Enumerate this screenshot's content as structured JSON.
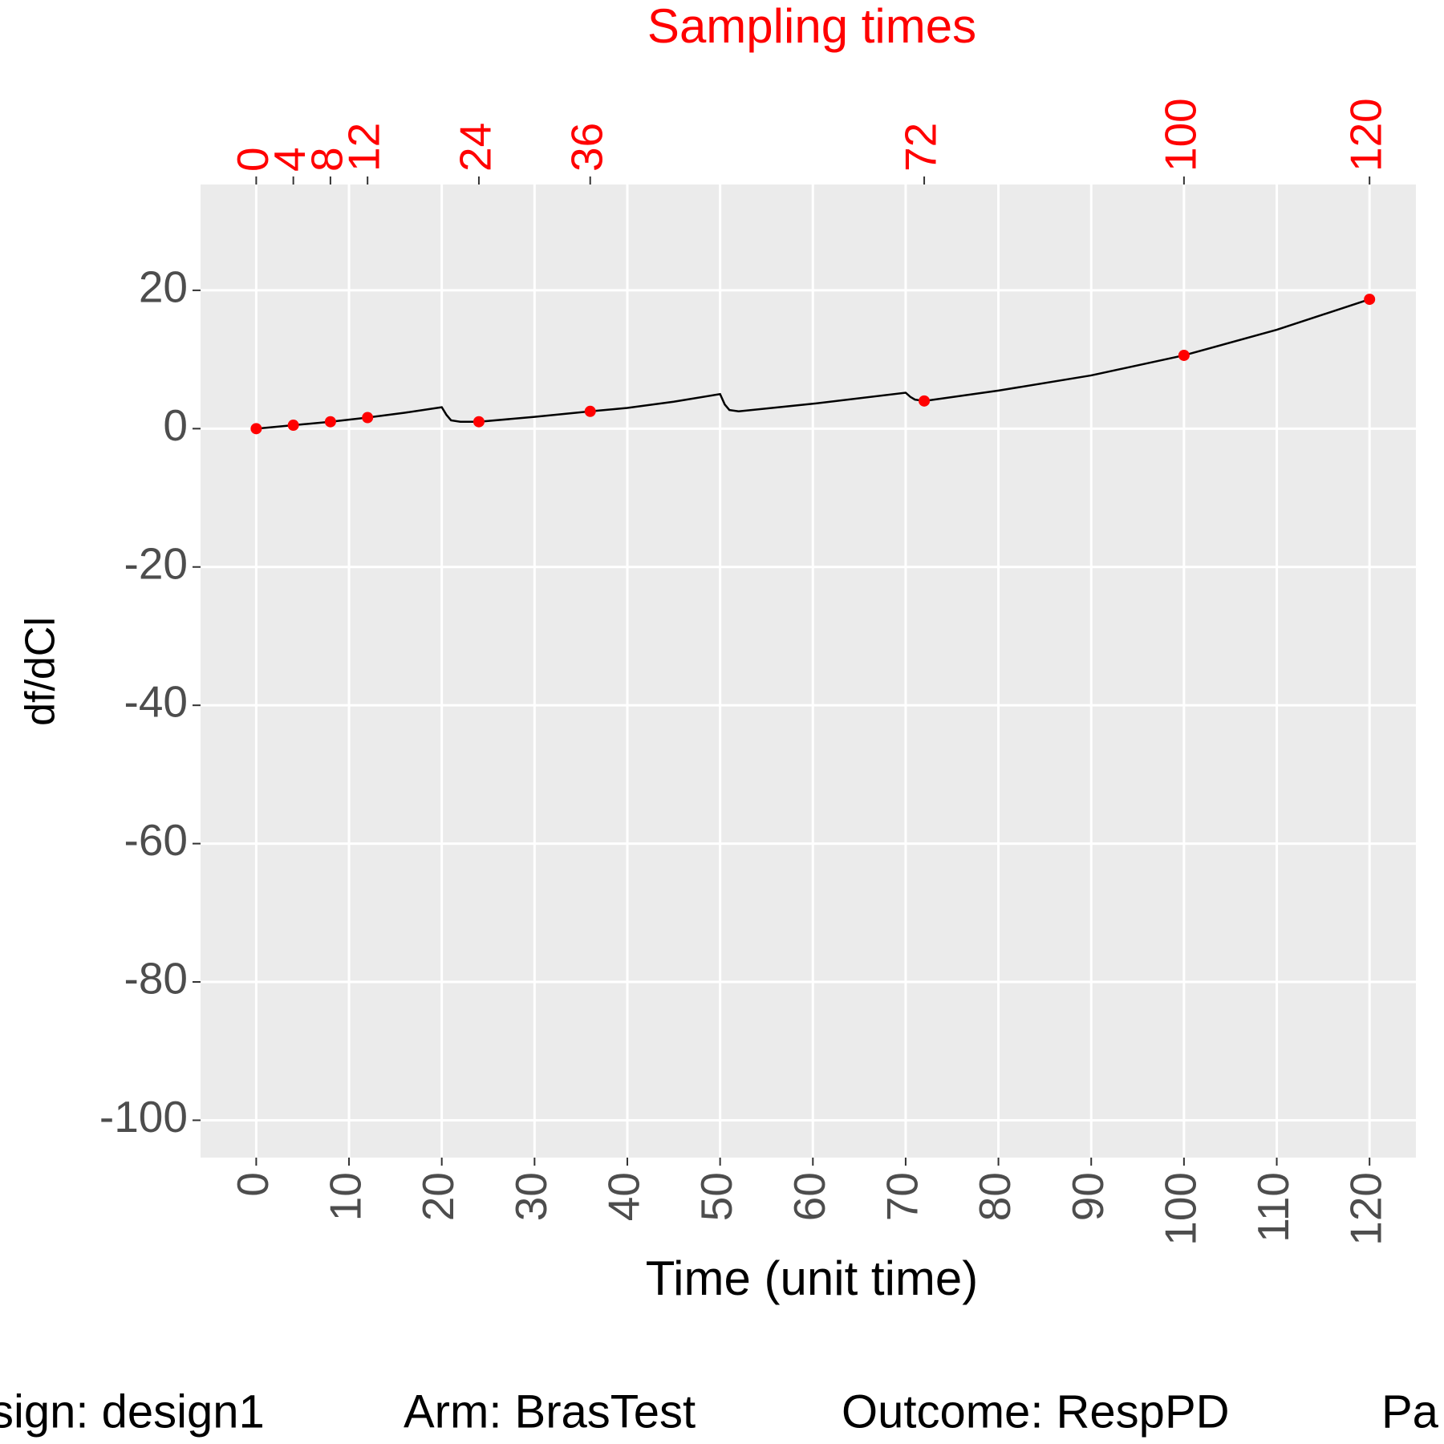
{
  "chart_data": {
    "type": "line",
    "title": "Sampling times",
    "x_label": "Time (unit time)",
    "y_label": "df/dCl",
    "xlim": [
      -6,
      125
    ],
    "ylim": [
      -105.4,
      35.3
    ],
    "xticks": [
      0,
      10,
      20,
      30,
      40,
      50,
      60,
      70,
      80,
      90,
      100,
      110,
      120
    ],
    "yticks": [
      -100,
      -80,
      -60,
      -40,
      -20,
      0,
      20
    ],
    "x2ticks": [
      0,
      4,
      8,
      12,
      24,
      36,
      72,
      100,
      120
    ],
    "grid": true,
    "series": [
      {
        "color": "#000000",
        "x": [
          0,
          4,
          8,
          12,
          16,
          20,
          20.5,
          21,
          22,
          24,
          30,
          36,
          40,
          45,
          50,
          50.5,
          51,
          52,
          60,
          70,
          70.5,
          71,
          72,
          80,
          90,
          100,
          110,
          120
        ],
        "values": [
          0,
          0.5,
          1.0,
          1.6,
          2.3,
          3.1,
          2.0,
          1.2,
          1.0,
          1.0,
          1.7,
          2.5,
          3.0,
          3.9,
          5.0,
          3.5,
          2.7,
          2.5,
          3.6,
          5.2,
          4.6,
          4.2,
          4.0,
          5.5,
          7.7,
          10.6,
          14.3,
          18.7
        ]
      },
      {
        "type": "scatter",
        "color": "#FF0000",
        "x": [
          0,
          4,
          8,
          12,
          24,
          36,
          72,
          100,
          120
        ],
        "values": [
          0,
          0.5,
          1.0,
          1.6,
          1.0,
          2.5,
          4.0,
          10.6,
          18.7
        ]
      }
    ],
    "caption": [
      "sign: design1",
      "Arm: BrasTest",
      "Outcome: RespPD",
      "Pa"
    ]
  }
}
